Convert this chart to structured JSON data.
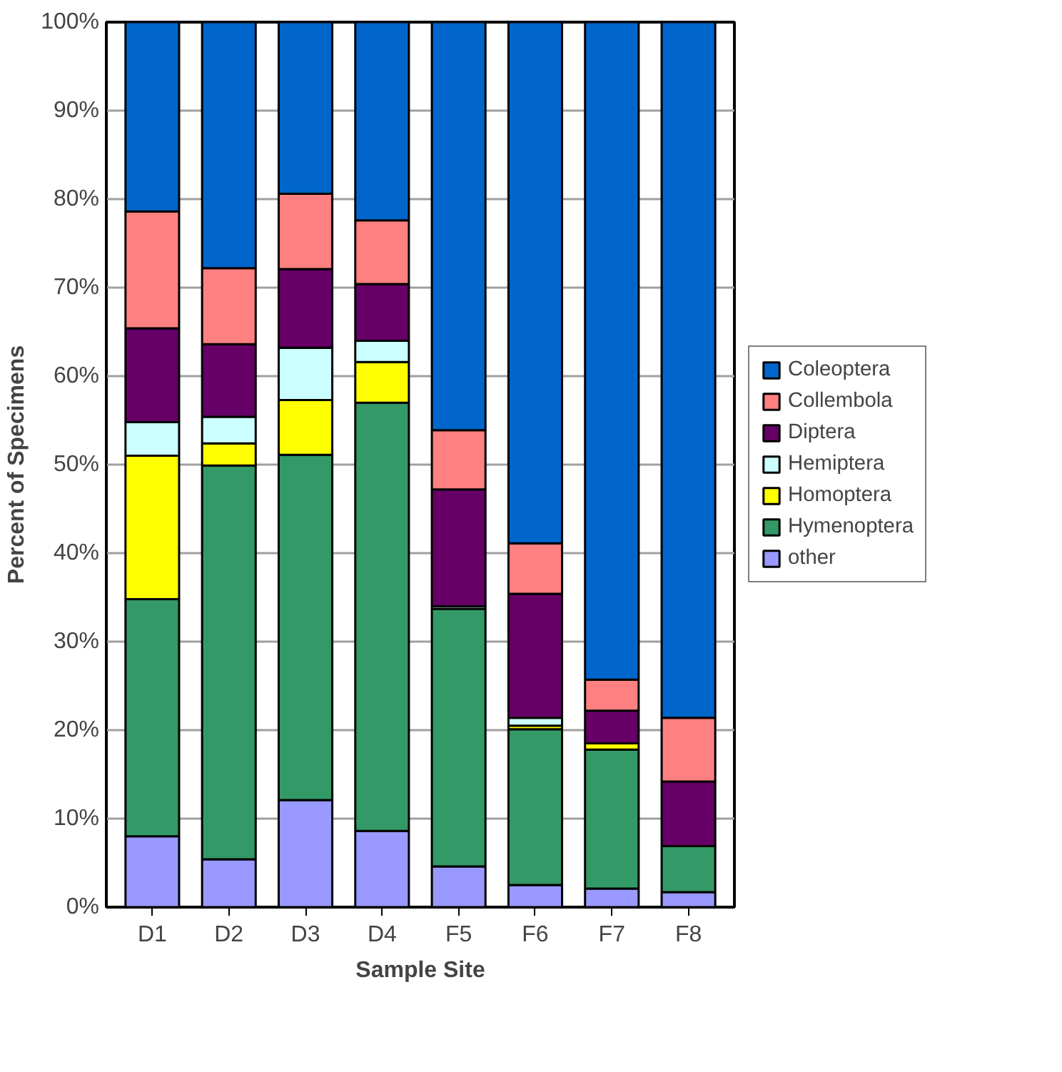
{
  "chart_data": {
    "type": "bar",
    "stacked": true,
    "xlabel": "Sample Site",
    "ylabel": "Percent of Specimens",
    "categories": [
      "D1",
      "D2",
      "D3",
      "D4",
      "F5",
      "F6",
      "F7",
      "F8"
    ],
    "series": [
      {
        "name": "other",
        "color": "#9999ff",
        "values": [
          8.0,
          5.4,
          12.1,
          8.6,
          4.6,
          2.5,
          2.1,
          1.7
        ]
      },
      {
        "name": "Hymenoptera",
        "color": "#339966",
        "values": [
          26.8,
          44.5,
          39.0,
          48.4,
          29.1,
          17.6,
          15.7,
          5.2
        ]
      },
      {
        "name": "Homoptera",
        "color": "#ffff00",
        "values": [
          16.2,
          2.5,
          6.2,
          4.6,
          null,
          0.4,
          0.7,
          null
        ]
      },
      {
        "name": "Hemiptera",
        "color": "#ccffff",
        "values": [
          3.8,
          3.0,
          5.9,
          2.4,
          0.3,
          0.9,
          null,
          null
        ]
      },
      {
        "name": "Diptera",
        "color": "#660066",
        "values": [
          10.6,
          8.2,
          8.9,
          6.4,
          13.2,
          14.0,
          3.7,
          7.3
        ]
      },
      {
        "name": "Collembola",
        "color": "#ff8080",
        "values": [
          13.2,
          8.6,
          8.5,
          7.2,
          6.7,
          5.7,
          3.5,
          7.2
        ]
      },
      {
        "name": "Coleoptera",
        "color": "#0066cc",
        "values": [
          21.4,
          27.8,
          19.4,
          22.4,
          46.1,
          58.9,
          74.3,
          78.6
        ]
      }
    ],
    "ylim": [
      0,
      100
    ],
    "yticks": [
      {
        "value": 0,
        "label": "0%"
      },
      {
        "value": 10,
        "label": "10%"
      },
      {
        "value": 20,
        "label": "20%"
      },
      {
        "value": 30,
        "label": "30%"
      },
      {
        "value": 40,
        "label": "40%"
      },
      {
        "value": 50,
        "label": "50%"
      },
      {
        "value": 60,
        "label": "60%"
      },
      {
        "value": 70,
        "label": "70%"
      },
      {
        "value": 80,
        "label": "80%"
      },
      {
        "value": 90,
        "label": "90%"
      },
      {
        "value": 100,
        "label": "100%"
      }
    ],
    "grid": "y",
    "legend": "right"
  }
}
